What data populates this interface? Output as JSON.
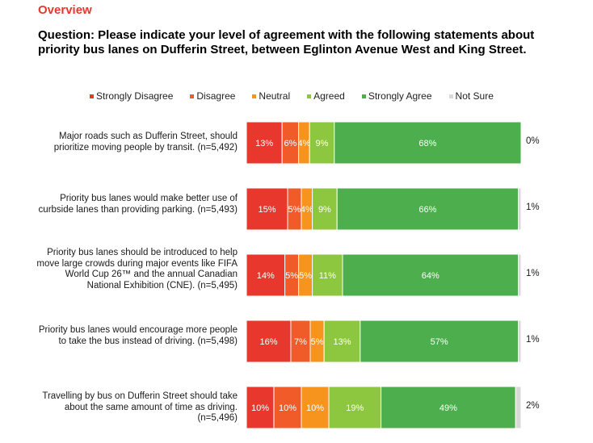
{
  "header": {
    "overview": "Overview",
    "question": "Question: Please indicate your level of agreement with the following statements about priority bus lanes on Dufferin Street, between Eglinton Avenue West and King Street."
  },
  "chart_data": {
    "type": "bar",
    "orientation": "horizontal",
    "stacked": true,
    "legend_position": "top",
    "series": [
      {
        "name": "Strongly Disagree",
        "color": "#e8372c",
        "values": [
          13,
          15,
          14,
          16,
          10
        ]
      },
      {
        "name": "Disagree",
        "color": "#f15a29",
        "values": [
          6,
          5,
          5,
          7,
          10
        ]
      },
      {
        "name": "Neutral",
        "color": "#f7941d",
        "values": [
          4,
          4,
          5,
          5,
          10
        ]
      },
      {
        "name": "Agreed",
        "color": "#8dc63f",
        "values": [
          9,
          9,
          11,
          13,
          19
        ]
      },
      {
        "name": "Strongly Agree",
        "color": "#4cae4c",
        "values": [
          68,
          66,
          64,
          57,
          49
        ]
      },
      {
        "name": "Not Sure",
        "color": "#d9d9d9",
        "values": [
          0,
          1,
          1,
          1,
          2
        ]
      }
    ],
    "categories": [
      "Major roads such as Dufferin Street, should prioritize moving people by transit.  (n=5,492)",
      "Priority bus lanes would make better use of curbside lanes than providing parking. (n=5,493)",
      "Priority bus lanes should be introduced to help move large crowds during major events like FIFA World Cup 26™ and the annual Canadian National Exhibition (CNE). (n=5,495)",
      "Priority bus lanes would encourage more people to take the bus instead of driving. (n=5,498)",
      "Travelling by bus on Dufferin Street should take about the same amount of time as driving.  (n=5,496)"
    ],
    "value_labels": [
      [
        "13%",
        "6%",
        "4%",
        "9%",
        "68%",
        "0%"
      ],
      [
        "15%",
        "5%",
        "4%",
        "9%",
        "66%",
        "1%"
      ],
      [
        "14%",
        "5%",
        "5%",
        "11%",
        "64%",
        "1%"
      ],
      [
        "16%",
        "7%",
        "5%",
        "13%",
        "57%",
        "1%"
      ],
      [
        "10%",
        "10%",
        "10%",
        "19%",
        "49%",
        "2%"
      ]
    ],
    "xlim": [
      0,
      100
    ],
    "unit": "%"
  }
}
